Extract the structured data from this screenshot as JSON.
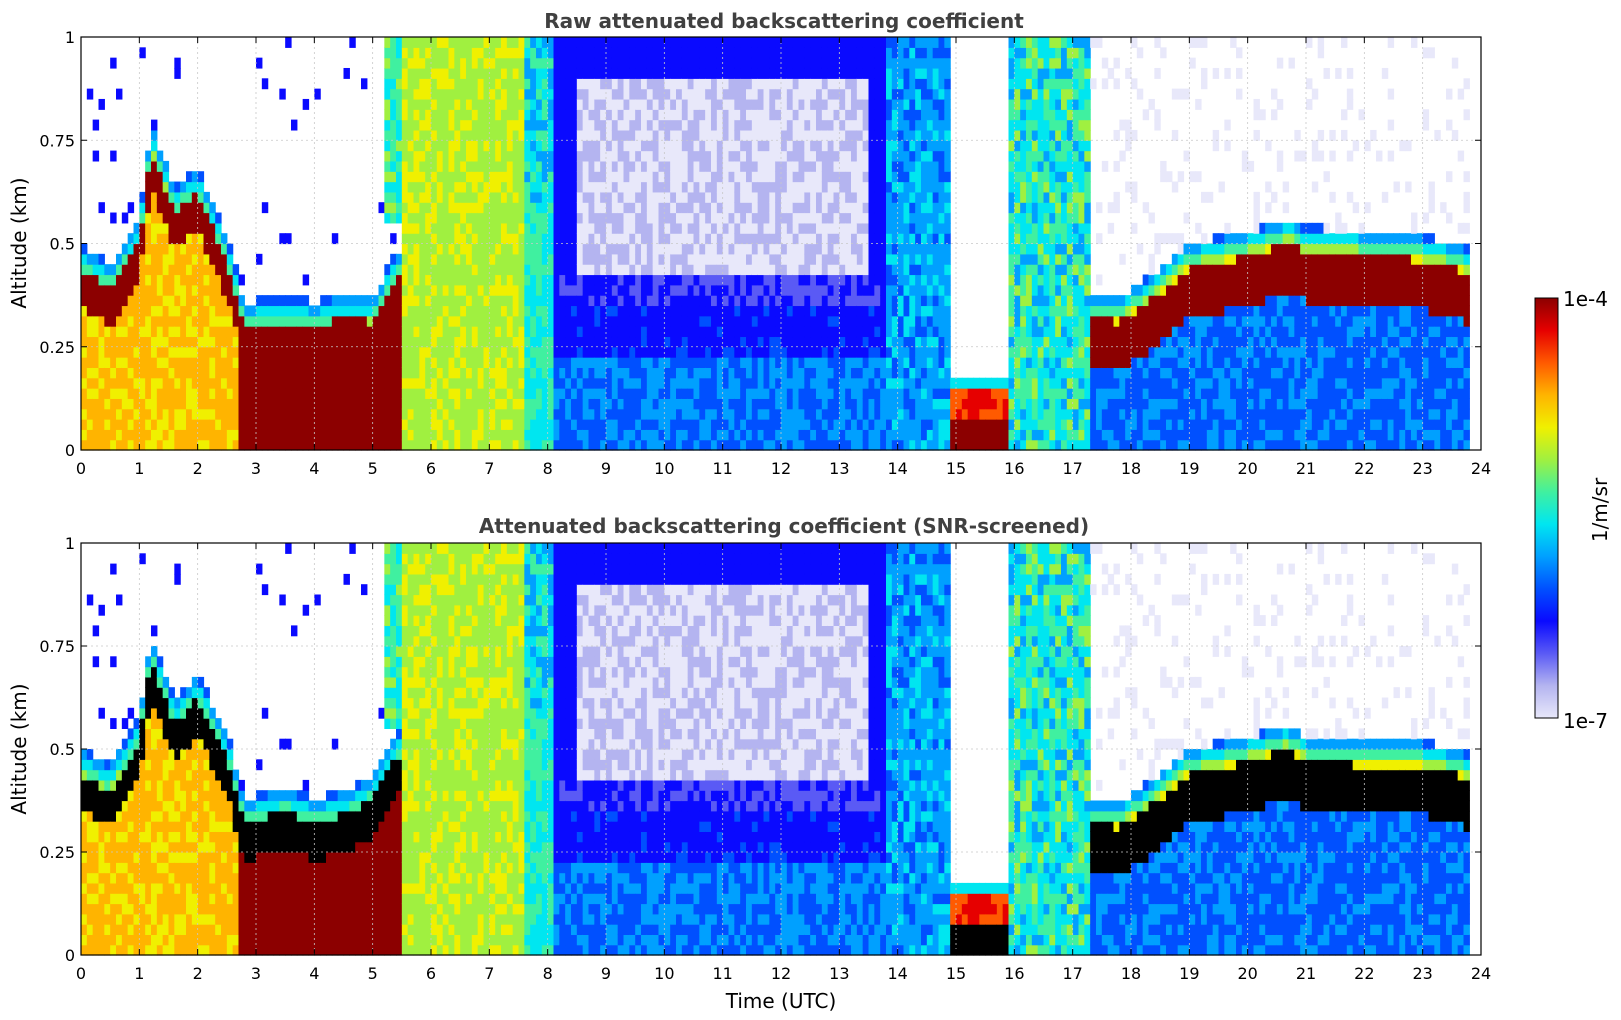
{
  "colors": {
    "colormap": [
      "#e8e8fa",
      "#b4b4f0",
      "#5a5af5",
      "#0a0aff",
      "#0050ff",
      "#00a0ff",
      "#00e6f0",
      "#40f0a0",
      "#a0f040",
      "#f0f000",
      "#ffb400",
      "#ff5a00",
      "#e60000",
      "#8c0000"
    ],
    "saturated_screened": "#000000",
    "grid": "#c8c8c8",
    "title_text": "#404040"
  },
  "chart_data": [
    {
      "type": "heatmap",
      "title": "Raw attenuated backscattering coefficient",
      "xlabel": "",
      "ylabel": "Altitude (km)",
      "xlim": [
        0,
        24
      ],
      "ylim": [
        0,
        1
      ],
      "xticks": [
        "0",
        "1",
        "2",
        "3",
        "4",
        "5",
        "6",
        "7",
        "8",
        "9",
        "10",
        "11",
        "12",
        "13",
        "14",
        "15",
        "16",
        "17",
        "18",
        "19",
        "20",
        "21",
        "22",
        "23",
        "24"
      ],
      "yticks": [
        "0",
        "0.25",
        "0.5",
        "0.75",
        "1"
      ],
      "grid": true,
      "screened": false,
      "layer_top_km": {
        "t": [
          0,
          0.5,
          1.0,
          1.2,
          1.6,
          2.0,
          2.5,
          2.8,
          3.5,
          4.0,
          4.5,
          5.0,
          5.4,
          17.3,
          17.8,
          18.5,
          19.0,
          20.0,
          20.7,
          21.0,
          22.0,
          23.0,
          23.8
        ],
        "v": [
          0.44,
          0.39,
          0.5,
          0.73,
          0.58,
          0.62,
          0.46,
          0.3,
          0.31,
          0.3,
          0.32,
          0.31,
          0.42,
          0.32,
          0.31,
          0.38,
          0.44,
          0.47,
          0.5,
          0.48,
          0.47,
          0.46,
          0.43
        ]
      }
    },
    {
      "type": "heatmap",
      "title": "Attenuated backscattering coefficient (SNR-screened)",
      "xlabel": "Time (UTC)",
      "ylabel": "Altitude (km)",
      "xlim": [
        0,
        24
      ],
      "ylim": [
        0,
        1
      ],
      "xticks": [
        "0",
        "1",
        "2",
        "3",
        "4",
        "5",
        "6",
        "7",
        "8",
        "9",
        "10",
        "11",
        "12",
        "13",
        "14",
        "15",
        "16",
        "17",
        "18",
        "19",
        "20",
        "21",
        "22",
        "23",
        "24"
      ],
      "yticks": [
        "0",
        "0.25",
        "0.5",
        "0.75",
        "1"
      ],
      "grid": true,
      "screened": true,
      "layer_top_km": {
        "t": [
          0,
          0.5,
          1.0,
          1.2,
          1.6,
          2.0,
          2.5,
          2.8,
          3.5,
          4.0,
          4.5,
          5.0,
          5.4,
          17.3,
          17.8,
          18.5,
          19.0,
          20.0,
          20.7,
          21.0,
          22.0,
          23.0,
          23.8
        ],
        "v": [
          0.44,
          0.4,
          0.52,
          0.72,
          0.56,
          0.62,
          0.48,
          0.32,
          0.35,
          0.32,
          0.34,
          0.38,
          0.48,
          0.32,
          0.31,
          0.38,
          0.44,
          0.47,
          0.5,
          0.47,
          0.46,
          0.46,
          0.43
        ]
      }
    }
  ],
  "colorbar": {
    "label": "1/m/sr",
    "max_label": "1e-4",
    "min_label": "1e-7",
    "range": [
      "1e-7",
      "1e-4"
    ],
    "scale": "log"
  }
}
